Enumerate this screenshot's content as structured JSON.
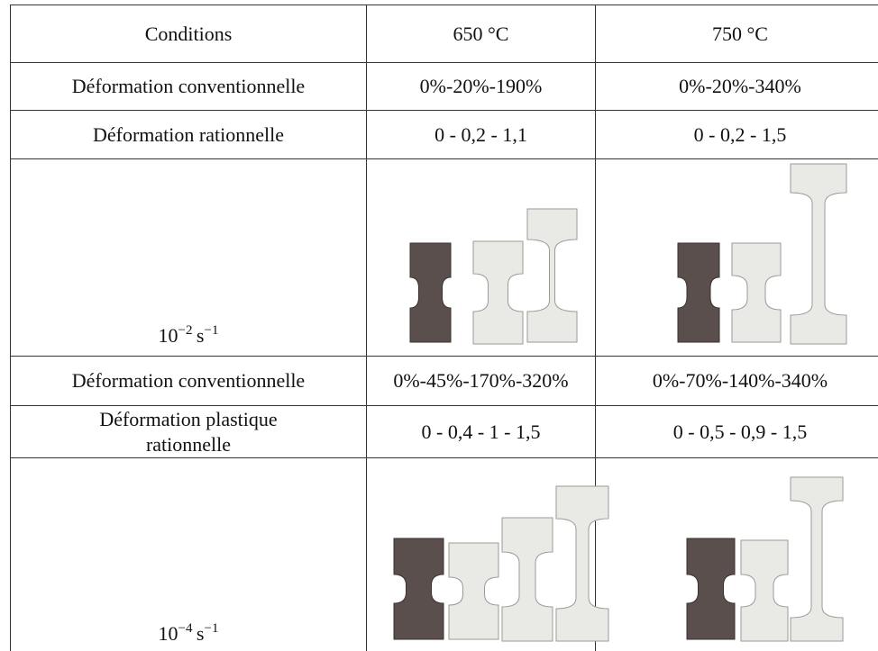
{
  "table": {
    "header": [
      "Conditions",
      "650 °C",
      "750 °C"
    ],
    "rows": [
      [
        "Déformation conventionnelle",
        "0%-20%-190%",
        "0%-20%-340%"
      ],
      [
        "Déformation rationnelle",
        "0 - 0,2 - 1,1",
        "0 - 0,2 - 1,5"
      ],
      [
        "Déformation conventionnelle",
        "0%-45%-170%-320%",
        "0%-70%-140%-340%"
      ],
      [
        "Déformation plastique\nrationnelle",
        "0 - 0,4 - 1 - 1,5",
        "0 - 0,5 - 0,9 - 1,5"
      ]
    ],
    "rates": [
      {
        "base": "10",
        "exp": "−2",
        "unit": "s",
        "unit_exp": "−1"
      },
      {
        "base": "10",
        "exp": "−4",
        "unit": "s",
        "unit_exp": "−1"
      }
    ]
  }
}
